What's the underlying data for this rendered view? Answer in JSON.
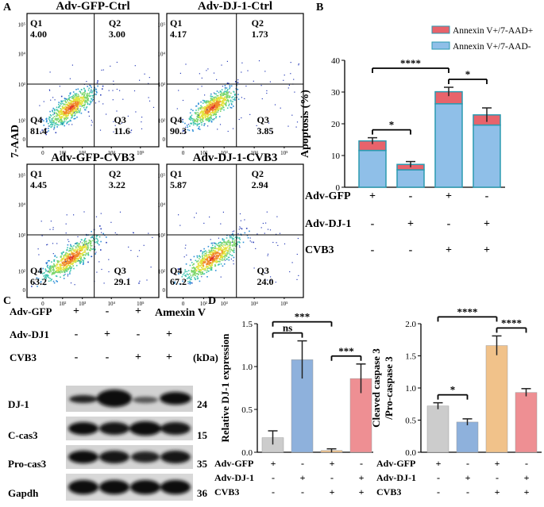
{
  "panel_labels": {
    "a": "A",
    "b": "B",
    "c": "C",
    "d": "D"
  },
  "flow": {
    "y_axis_label": "7-AAD",
    "x_axis_label": "Annexin V",
    "ticks": [
      "0",
      "10²",
      "10³",
      "10⁴",
      "10⁵"
    ],
    "plots": [
      {
        "title": "Adv-GFP-Ctrl",
        "q1": "4.00",
        "q2": "3.00",
        "q3": "11.6",
        "q4": "81.4"
      },
      {
        "title": "Adv-DJ-1-Ctrl",
        "q1": "4.17",
        "q2": "1.73",
        "q3": "3.85",
        "q4": "90.3"
      },
      {
        "title": "Adv-GFP-CVB3",
        "q1": "4.45",
        "q2": "3.22",
        "q3": "29.1",
        "q4": "63.2"
      },
      {
        "title": "Adv-DJ-1-CVB3",
        "q1": "5.87",
        "q2": "2.94",
        "q3": "24.0",
        "q4": "67.2"
      }
    ],
    "q_names": {
      "q1": "Q1",
      "q2": "Q2",
      "q3": "Q3",
      "q4": "Q4"
    }
  },
  "blot": {
    "rows": [
      "Adv-GFP",
      "Adv-DJ1",
      "CVB3"
    ],
    "signs": [
      [
        "+",
        "-",
        "+",
        "-"
      ],
      [
        "-",
        "+",
        "-",
        "+"
      ],
      [
        "-",
        "-",
        "+",
        "+"
      ]
    ],
    "kda": "(kDa)",
    "bands": [
      {
        "name": "DJ-1",
        "kda": "24"
      },
      {
        "name": "C-cas3",
        "kda": "15"
      },
      {
        "name": "Pro-cas3",
        "kda": "35"
      },
      {
        "name": "Gapdh",
        "kda": "36"
      }
    ]
  },
  "chart_data": [
    {
      "type": "bar",
      "stacked": true,
      "ylabel": "Apoptosis (%)",
      "ylim": [
        0,
        40
      ],
      "yticks": [
        0,
        10,
        20,
        30,
        40
      ],
      "legend_position": "top-right",
      "series": [
        {
          "name": "Annexin V+/7-AAD+",
          "color": "#e8636b",
          "values": [
            3.0,
            1.7,
            3.8,
            3.2
          ]
        },
        {
          "name": "Annexin V+/7-AAD-",
          "color": "#8fbfe8",
          "values": [
            11.6,
            5.5,
            26.3,
            19.6
          ]
        }
      ],
      "errors": [
        1.0,
        0.9,
        1.4,
        2.2
      ],
      "group_rows": [
        {
          "name": "Adv-GFP",
          "signs": [
            "+",
            "-",
            "+",
            "-"
          ]
        },
        {
          "name": "Adv-DJ-1",
          "signs": [
            "-",
            "+",
            "-",
            "+"
          ]
        },
        {
          "name": "CVB3",
          "signs": [
            "-",
            "-",
            "+",
            "+"
          ]
        }
      ],
      "significance": [
        "*",
        "****",
        "*"
      ]
    },
    {
      "type": "bar",
      "ylabel": "Relative DJ-1 expression",
      "ylim": [
        0,
        1.5
      ],
      "yticks": [
        "0.0",
        "0.5",
        "1.0",
        "1.5"
      ],
      "values": [
        0.17,
        1.08,
        0.02,
        0.86
      ],
      "errors": [
        0.08,
        0.22,
        0.02,
        0.17
      ],
      "colors": [
        "#cccccc",
        "#8eb1dc",
        "#f1c28a",
        "#ee8f93"
      ],
      "group_rows": [
        {
          "name": "Adv-GFP",
          "signs": [
            "+",
            "-",
            "+",
            "-"
          ]
        },
        {
          "name": "Adv-DJ-1",
          "signs": [
            "-",
            "+",
            "-",
            "+"
          ]
        },
        {
          "name": "CVB3",
          "signs": [
            "-",
            "-",
            "+",
            "+"
          ]
        }
      ],
      "significance": [
        "ns",
        "***",
        "***"
      ]
    },
    {
      "type": "bar",
      "ylabel": "Cleaved caspase 3 /Pro-caspase 3",
      "ylim": [
        0,
        2.0
      ],
      "yticks": [
        "0.0",
        "0.5",
        "1.0",
        "1.5",
        "2.0"
      ],
      "values": [
        0.72,
        0.47,
        1.66,
        0.93
      ],
      "errors": [
        0.05,
        0.05,
        0.15,
        0.06
      ],
      "colors": [
        "#cccccc",
        "#8eb1dc",
        "#f1c28a",
        "#ee8f93"
      ],
      "group_rows": [
        {
          "name": "Adv-GFP",
          "signs": [
            "+",
            "-",
            "+",
            "-"
          ]
        },
        {
          "name": "Adv-DJ-1",
          "signs": [
            "-",
            "+",
            "-",
            "+"
          ]
        },
        {
          "name": "CVB3",
          "signs": [
            "-",
            "-",
            "+",
            "+"
          ]
        }
      ],
      "significance": [
        "*",
        "****",
        "****"
      ]
    }
  ]
}
